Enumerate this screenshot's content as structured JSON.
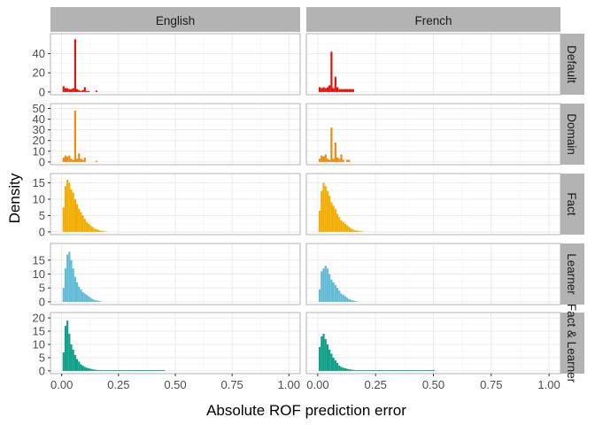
{
  "chart_data": {
    "type": "bar",
    "xlabel": "Absolute ROF prediction error",
    "ylabel": "Density",
    "xlim": [
      0,
      1
    ],
    "x_ticks": [
      "0.00",
      "0.25",
      "0.50",
      "0.75",
      "1.00"
    ],
    "grid": true,
    "columns": [
      "English",
      "French"
    ],
    "bin_width": 0.0085,
    "rows": [
      {
        "name": "Default",
        "color": "#e8110a",
        "ylim": [
          0,
          58
        ],
        "y_ticks": [
          0,
          20,
          40
        ],
        "panels": [
          {
            "column": "English",
            "start": 0.004,
            "values": [
              6,
              4,
              4,
              3,
              3,
              4,
              55,
              3,
              2,
              1,
              2,
              5,
              1,
              1,
              0,
              0,
              0,
              1.5
            ]
          },
          {
            "column": "French",
            "start": 0.004,
            "values": [
              5,
              4,
              5,
              4,
              5,
              7,
              42,
              4,
              16,
              5,
              3,
              3,
              3,
              3,
              3,
              3,
              3,
              3
            ]
          }
        ]
      },
      {
        "name": "Domain",
        "color": "#f08a0b",
        "ylim": [
          0,
          52
        ],
        "y_ticks": [
          0,
          10,
          20,
          30,
          40,
          50
        ],
        "panels": [
          {
            "column": "English",
            "start": 0.004,
            "values": [
              4,
              6,
              5,
              6,
              3,
              2,
              48,
              3,
              8,
              3,
              2,
              4,
              0,
              0,
              0,
              0,
              0,
              1
            ]
          },
          {
            "column": "French",
            "start": 0.004,
            "values": [
              3,
              6,
              5,
              7,
              3,
              2,
              32,
              3,
              18,
              4,
              3,
              7,
              2,
              0,
              2,
              2,
              0,
              0
            ]
          }
        ]
      },
      {
        "name": "Fact",
        "color": "#f2ae03",
        "ylim": [
          0,
          17
        ],
        "y_ticks": [
          0,
          5,
          10,
          15
        ],
        "panels": [
          {
            "column": "English",
            "start": 0.004,
            "values": [
              7.5,
              14,
              16,
              15,
              13,
              12,
              10,
              8.5,
              7,
              6,
              5,
              4,
              3,
              2.5,
              2,
              1.5,
              1,
              0.8,
              0.6,
              0.4,
              0.3,
              0.2,
              0.1
            ]
          },
          {
            "column": "French",
            "start": 0.004,
            "values": [
              6.5,
              12.5,
              15,
              14,
              12.5,
              11,
              9,
              8,
              7,
              5.5,
              4.5,
              3.5,
              3,
              2.5,
              2,
              1.5,
              1,
              0.7,
              0.5,
              0.4,
              0.3,
              0.2,
              0.1
            ]
          }
        ]
      },
      {
        "name": "Learner",
        "color": "#62bcd6",
        "ylim": [
          0,
          20
        ],
        "y_ticks": [
          0,
          5,
          10,
          15
        ],
        "panels": [
          {
            "column": "English",
            "start": 0.004,
            "values": [
              5,
              12,
              17,
              18,
              15,
              12,
              9,
              7,
              5.5,
              4.5,
              3.5,
              3,
              2.5,
              2,
              1.5,
              1,
              0.7,
              0.5,
              0.4,
              0.2
            ]
          },
          {
            "column": "French",
            "start": 0.004,
            "values": [
              4.5,
              11,
              12,
              13,
              12,
              10,
              8,
              7,
              6,
              5,
              4,
              3,
              2.5,
              2,
              1.5,
              1,
              0.7,
              0.5,
              0.3,
              0.2
            ]
          }
        ]
      },
      {
        "name": "Fact & Learner",
        "color": "#0fa088",
        "ylim": [
          0,
          21
        ],
        "y_ticks": [
          0,
          5,
          10,
          15,
          20
        ],
        "panels": [
          {
            "column": "English",
            "start": 0.004,
            "values": [
              7,
              17,
              19,
              14,
              10,
              8,
              6,
              4.5,
              3.5,
              2.5,
              2,
              1.5,
              1.2,
              1,
              0.8,
              0.6,
              0.5,
              0.4,
              0.3,
              0.3,
              0.3,
              0.3,
              0.3,
              0.3,
              0.3,
              0.3,
              0.3,
              0.3,
              0.3,
              0.3,
              0.3,
              0.3,
              0.3,
              0.3,
              0.3,
              0.3,
              0.3,
              0.3,
              0.3,
              0.3,
              0.3,
              0.3,
              0.3,
              0.3,
              0.3,
              0.3,
              0.3,
              0.3,
              0.3,
              0.3,
              0.3,
              0.3,
              0.3
            ]
          },
          {
            "column": "French",
            "start": 0.004,
            "values": [
              9,
              13,
              14,
              12,
              10,
              8,
              6.5,
              5,
              4,
              3,
              2,
              1.5,
              1.2,
              1,
              0.8,
              0.6,
              0.5,
              0.4,
              0.3,
              0.3,
              0.3,
              0.3,
              0.3,
              0.3,
              0.3,
              0.3,
              0.3,
              0.3,
              0.3,
              0.3,
              0.3,
              0.3,
              0.3,
              0.3,
              0.3,
              0.3,
              0.3,
              0.3,
              0.3,
              0.3,
              0.3,
              0.3,
              0.3,
              0.3,
              0.3,
              0.3,
              0.3,
              0.3,
              0.3,
              0.3,
              0.3,
              0.3,
              0.3,
              0.3,
              0.3,
              0.3,
              0.3,
              0.3,
              0.3
            ]
          }
        ]
      }
    ]
  }
}
